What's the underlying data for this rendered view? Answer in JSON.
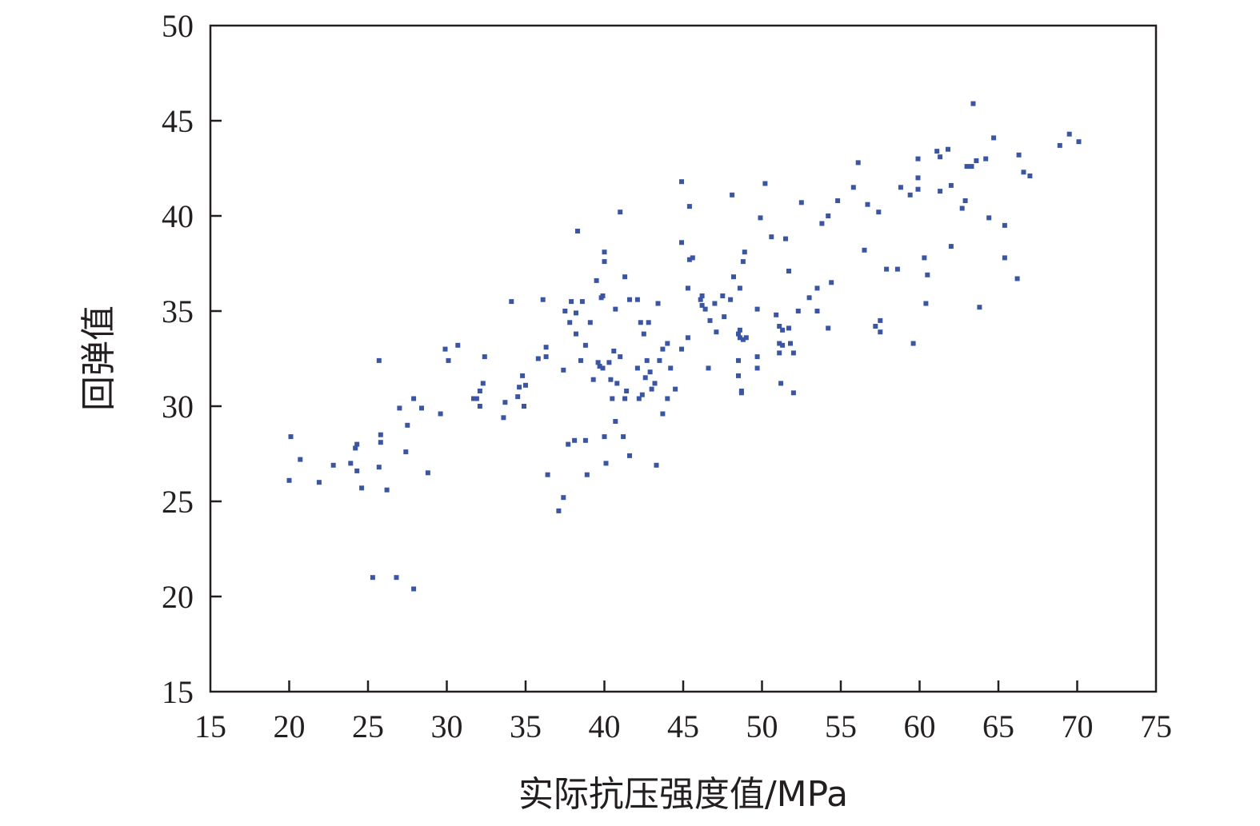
{
  "chart_data": {
    "type": "scatter",
    "title": "",
    "xlabel": "实际抗压强度值/MPa",
    "ylabel": "回弹值",
    "xlim": [
      15,
      75
    ],
    "ylim": [
      15,
      50
    ],
    "xticks": [
      "15",
      "20",
      "25",
      "30",
      "35",
      "40",
      "45",
      "50",
      "55",
      "60",
      "65",
      "70",
      "75"
    ],
    "yticks": [
      "15",
      "20",
      "25",
      "30",
      "35",
      "40",
      "45",
      "50"
    ],
    "grid": false,
    "legend": "none",
    "point_color": "#3a55a4",
    "series": [
      {
        "points": [
          [
            20.0,
            26.1
          ],
          [
            20.1,
            28.4
          ],
          [
            20.7,
            27.2
          ],
          [
            21.9,
            26.0
          ],
          [
            22.8,
            26.9
          ],
          [
            23.9,
            27.0
          ],
          [
            24.2,
            27.8
          ],
          [
            24.3,
            28.0
          ],
          [
            24.3,
            26.6
          ],
          [
            24.6,
            25.7
          ],
          [
            25.3,
            21.0
          ],
          [
            25.7,
            26.8
          ],
          [
            25.7,
            32.4
          ],
          [
            25.8,
            28.1
          ],
          [
            25.8,
            28.5
          ],
          [
            26.2,
            25.6
          ],
          [
            26.8,
            21.0
          ],
          [
            27.0,
            29.9
          ],
          [
            27.4,
            27.6
          ],
          [
            27.5,
            29.0
          ],
          [
            27.9,
            20.4
          ],
          [
            27.9,
            30.4
          ],
          [
            28.4,
            29.9
          ],
          [
            28.8,
            26.5
          ],
          [
            29.6,
            29.6
          ],
          [
            29.9,
            33.0
          ],
          [
            30.1,
            32.4
          ],
          [
            30.7,
            33.2
          ],
          [
            31.7,
            30.4
          ],
          [
            31.9,
            30.4
          ],
          [
            32.1,
            30.0
          ],
          [
            32.1,
            30.8
          ],
          [
            32.3,
            31.2
          ],
          [
            32.4,
            32.6
          ],
          [
            33.6,
            29.4
          ],
          [
            33.7,
            30.2
          ],
          [
            34.1,
            35.5
          ],
          [
            34.5,
            30.5
          ],
          [
            34.6,
            31.0
          ],
          [
            34.8,
            31.6
          ],
          [
            34.9,
            30.0
          ],
          [
            35.0,
            31.1
          ],
          [
            35.8,
            32.5
          ],
          [
            36.1,
            35.6
          ],
          [
            36.3,
            32.6
          ],
          [
            36.3,
            33.1
          ],
          [
            36.4,
            26.4
          ],
          [
            37.1,
            24.5
          ],
          [
            37.4,
            31.9
          ],
          [
            37.4,
            25.2
          ],
          [
            37.5,
            35.0
          ],
          [
            37.7,
            28.0
          ],
          [
            37.8,
            34.4
          ],
          [
            37.9,
            35.5
          ],
          [
            38.1,
            28.2
          ],
          [
            38.2,
            34.9
          ],
          [
            38.2,
            33.8
          ],
          [
            38.3,
            39.2
          ],
          [
            38.5,
            32.4
          ],
          [
            38.6,
            35.5
          ],
          [
            38.8,
            28.2
          ],
          [
            38.8,
            33.2
          ],
          [
            38.9,
            26.4
          ],
          [
            39.1,
            34.4
          ],
          [
            39.3,
            31.4
          ],
          [
            39.5,
            36.6
          ],
          [
            39.6,
            32.3
          ],
          [
            39.7,
            32.1
          ],
          [
            39.8,
            35.7
          ],
          [
            39.9,
            32.0
          ],
          [
            39.9,
            35.8
          ],
          [
            40.0,
            38.1
          ],
          [
            40.0,
            37.6
          ],
          [
            40.0,
            28.4
          ],
          [
            40.1,
            27.0
          ],
          [
            40.3,
            32.3
          ],
          [
            40.4,
            31.4
          ],
          [
            40.5,
            30.4
          ],
          [
            40.6,
            32.9
          ],
          [
            40.7,
            35.1
          ],
          [
            40.7,
            29.2
          ],
          [
            40.8,
            31.2
          ],
          [
            41.0,
            32.6
          ],
          [
            41.0,
            40.2
          ],
          [
            41.2,
            28.4
          ],
          [
            41.3,
            36.8
          ],
          [
            41.3,
            30.4
          ],
          [
            41.4,
            30.8
          ],
          [
            41.6,
            27.4
          ],
          [
            41.6,
            35.6
          ],
          [
            42.1,
            35.6
          ],
          [
            42.1,
            32.0
          ],
          [
            42.2,
            30.4
          ],
          [
            42.3,
            34.4
          ],
          [
            42.4,
            30.6
          ],
          [
            42.5,
            33.8
          ],
          [
            42.6,
            31.5
          ],
          [
            42.7,
            32.4
          ],
          [
            42.8,
            34.4
          ],
          [
            42.9,
            31.8
          ],
          [
            43.0,
            30.9
          ],
          [
            43.2,
            31.2
          ],
          [
            43.3,
            26.9
          ],
          [
            43.4,
            35.4
          ],
          [
            43.5,
            32.4
          ],
          [
            43.7,
            29.6
          ],
          [
            43.7,
            33.0
          ],
          [
            44.0,
            33.3
          ],
          [
            44.0,
            30.4
          ],
          [
            44.2,
            32.0
          ],
          [
            44.5,
            30.9
          ],
          [
            44.9,
            33.0
          ],
          [
            44.9,
            41.8
          ],
          [
            44.9,
            38.6
          ],
          [
            45.3,
            33.6
          ],
          [
            45.3,
            36.2
          ],
          [
            45.4,
            37.7
          ],
          [
            45.4,
            40.5
          ],
          [
            45.6,
            37.8
          ],
          [
            46.1,
            35.6
          ],
          [
            46.2,
            35.8
          ],
          [
            46.2,
            35.3
          ],
          [
            46.4,
            35.1
          ],
          [
            46.6,
            32.0
          ],
          [
            46.7,
            34.5
          ],
          [
            47.0,
            35.4
          ],
          [
            47.1,
            33.9
          ],
          [
            47.5,
            35.8
          ],
          [
            47.6,
            34.7
          ],
          [
            48.0,
            35.6
          ],
          [
            48.1,
            41.1
          ],
          [
            48.2,
            36.8
          ],
          [
            48.5,
            33.8
          ],
          [
            48.5,
            32.4
          ],
          [
            48.5,
            31.6
          ],
          [
            48.6,
            34.0
          ],
          [
            48.6,
            33.6
          ],
          [
            48.6,
            36.2
          ],
          [
            48.7,
            30.7
          ],
          [
            48.7,
            30.8
          ],
          [
            48.8,
            37.6
          ],
          [
            48.8,
            33.5
          ],
          [
            48.9,
            38.1
          ],
          [
            49.0,
            33.6
          ],
          [
            49.7,
            35.1
          ],
          [
            49.7,
            32.6
          ],
          [
            49.7,
            32.0
          ],
          [
            49.9,
            39.9
          ],
          [
            50.2,
            41.7
          ],
          [
            50.6,
            38.9
          ],
          [
            50.9,
            34.8
          ],
          [
            51.1,
            34.2
          ],
          [
            51.1,
            33.3
          ],
          [
            51.1,
            32.8
          ],
          [
            51.2,
            31.2
          ],
          [
            51.3,
            34.0
          ],
          [
            51.3,
            33.2
          ],
          [
            51.5,
            38.8
          ],
          [
            51.7,
            34.1
          ],
          [
            51.7,
            37.1
          ],
          [
            51.8,
            33.3
          ],
          [
            52.0,
            30.7
          ],
          [
            52.0,
            32.8
          ],
          [
            52.3,
            35.0
          ],
          [
            52.5,
            40.7
          ],
          [
            53.0,
            35.7
          ],
          [
            53.5,
            36.2
          ],
          [
            53.5,
            35.0
          ],
          [
            53.8,
            39.6
          ],
          [
            54.2,
            34.1
          ],
          [
            54.2,
            40.0
          ],
          [
            54.4,
            36.5
          ],
          [
            54.8,
            40.8
          ],
          [
            55.8,
            41.5
          ],
          [
            56.1,
            42.8
          ],
          [
            56.5,
            38.2
          ],
          [
            56.7,
            40.6
          ],
          [
            57.2,
            34.2
          ],
          [
            57.4,
            40.2
          ],
          [
            57.5,
            33.9
          ],
          [
            57.5,
            34.5
          ],
          [
            57.9,
            37.2
          ],
          [
            58.6,
            37.2
          ],
          [
            58.8,
            41.5
          ],
          [
            59.4,
            41.1
          ],
          [
            59.6,
            33.3
          ],
          [
            59.9,
            43.0
          ],
          [
            59.9,
            42.0
          ],
          [
            59.9,
            41.4
          ],
          [
            60.3,
            37.8
          ],
          [
            60.4,
            35.4
          ],
          [
            60.5,
            36.9
          ],
          [
            61.1,
            43.4
          ],
          [
            61.3,
            43.1
          ],
          [
            61.3,
            41.3
          ],
          [
            61.8,
            43.5
          ],
          [
            62.0,
            38.4
          ],
          [
            62.0,
            41.6
          ],
          [
            62.7,
            40.4
          ],
          [
            62.9,
            40.8
          ],
          [
            63.0,
            42.6
          ],
          [
            63.3,
            42.6
          ],
          [
            63.4,
            45.9
          ],
          [
            63.6,
            42.9
          ],
          [
            63.8,
            35.2
          ],
          [
            64.2,
            43.0
          ],
          [
            64.4,
            39.9
          ],
          [
            64.7,
            44.1
          ],
          [
            65.4,
            39.5
          ],
          [
            65.4,
            37.8
          ],
          [
            66.2,
            36.7
          ],
          [
            66.3,
            43.2
          ],
          [
            66.6,
            42.3
          ],
          [
            67.0,
            42.1
          ],
          [
            68.9,
            43.7
          ],
          [
            69.5,
            44.3
          ],
          [
            70.1,
            43.9
          ]
        ]
      }
    ]
  }
}
